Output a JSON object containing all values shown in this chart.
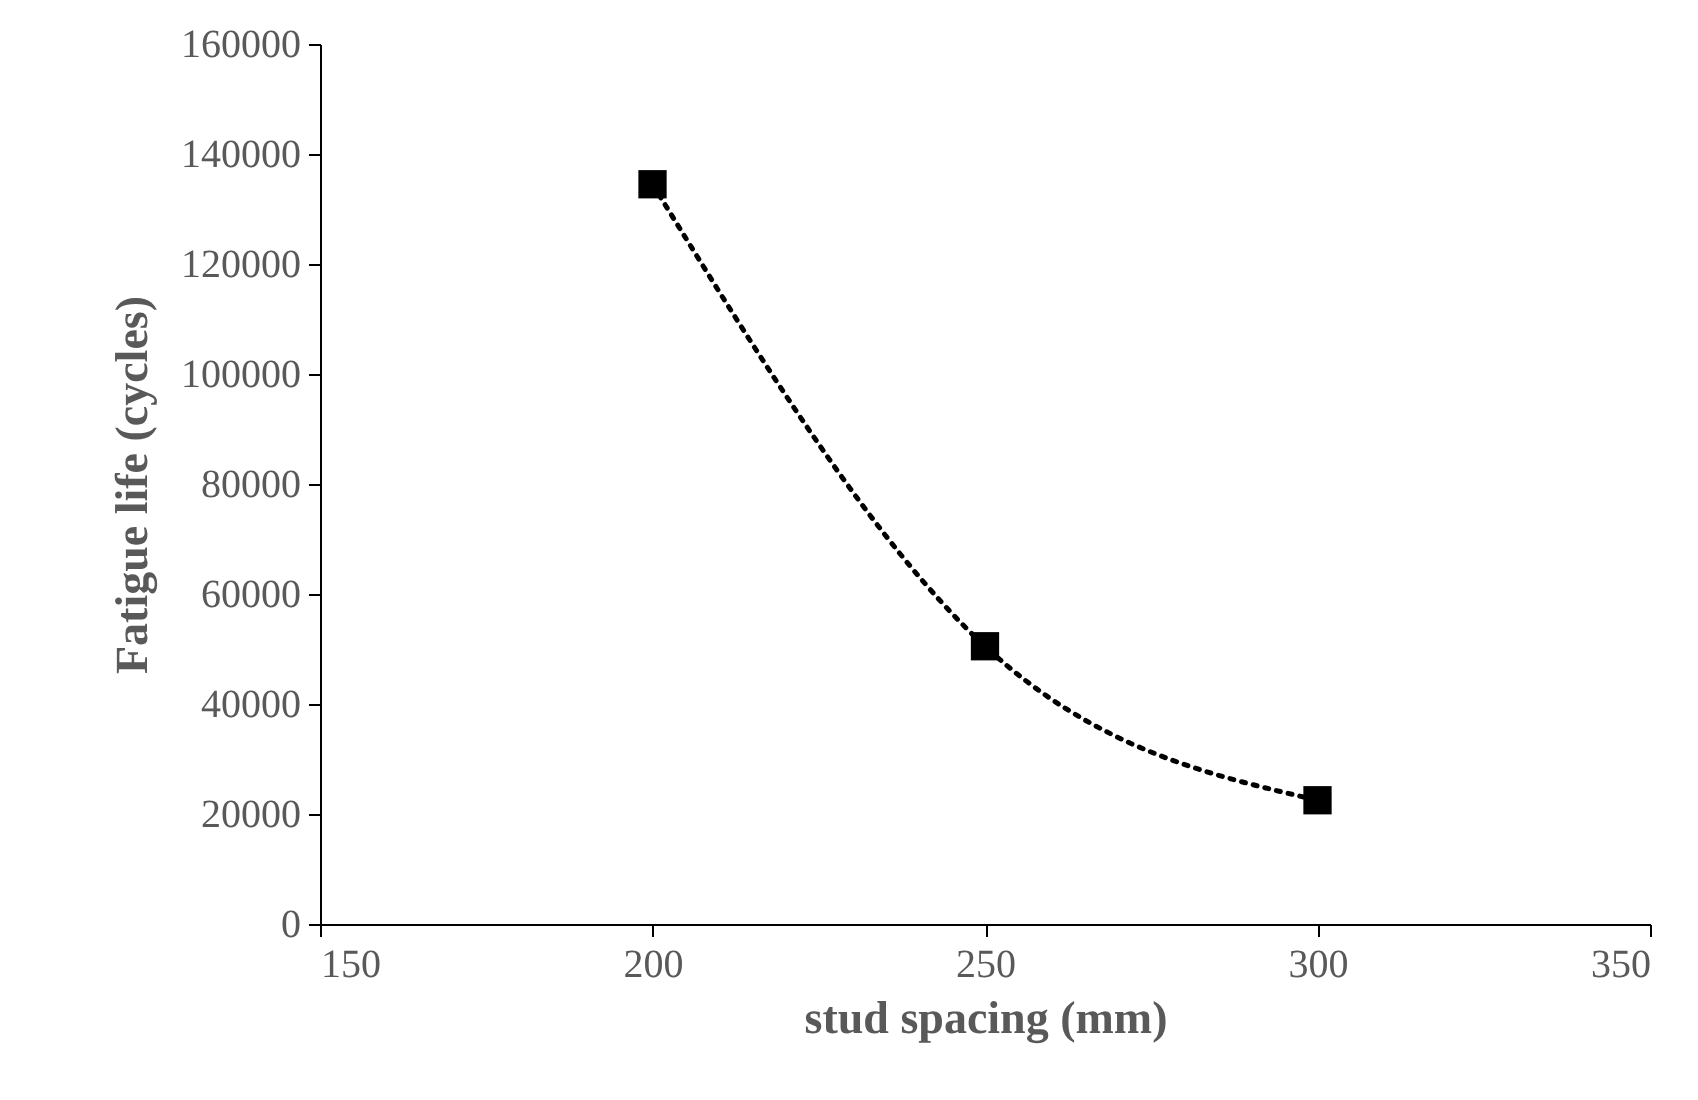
{
  "chart_data": {
    "type": "line",
    "xlabel": "stud spacing (mm)",
    "ylabel": "Fatigue life (cycles)",
    "x": [
      200,
      250,
      300
    ],
    "series": [
      {
        "color": "#000000",
        "values": [
          134500,
          50500,
          22500
        ]
      }
    ],
    "xlim": [
      150,
      350
    ],
    "xticks": [
      150,
      200,
      250,
      300,
      350
    ],
    "ylim": [
      0,
      160000
    ],
    "yticks": [
      0,
      20000,
      40000,
      60000,
      80000,
      100000,
      120000,
      140000,
      160000
    ],
    "grid": false,
    "marker": "square",
    "line_style": "dotted"
  }
}
